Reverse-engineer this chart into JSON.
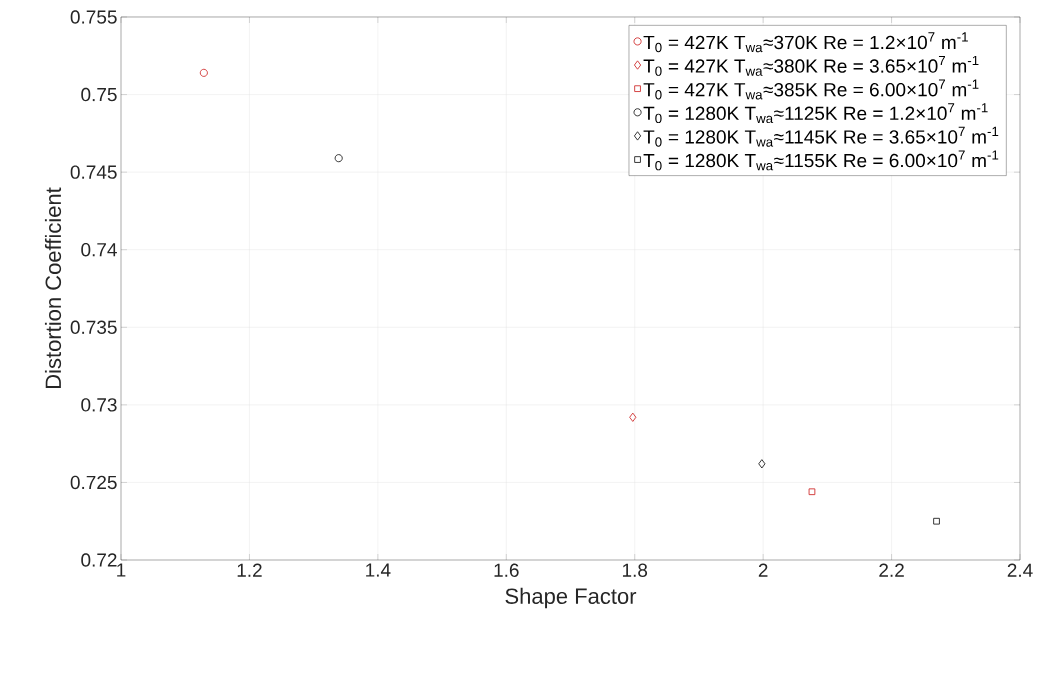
{
  "chart_data": {
    "type": "scatter",
    "xlabel": "Shape Factor",
    "ylabel": "Distortion Coefficient",
    "xlim": [
      1,
      2.4
    ],
    "xticks": [
      1,
      1.2,
      1.4,
      1.6,
      1.8,
      2,
      2.2,
      2.4
    ],
    "ylim": [
      0.72,
      0.755
    ],
    "yticks": [
      0.72,
      0.725,
      0.73,
      0.735,
      0.74,
      0.745,
      0.75,
      0.755
    ],
    "grid": true,
    "legend": "top right",
    "series": [
      {
        "name": "T$_{0}$ = 427K T$_{wa}$≈370K Re = 1.2×10$^{7}$ m$^{-1}$",
        "color": "#d03030",
        "marker": "circle",
        "x": [
          1.129
        ],
        "values": [
          0.7514
        ]
      },
      {
        "name": "T$_{0}$ = 427K T$_{wa}$≈380K Re = 3.65×10$^{7}$ m$^{-1}$",
        "color": "#d03030",
        "marker": "diamond",
        "x": [
          1.797
        ],
        "values": [
          0.7292
        ]
      },
      {
        "name": "T$_{0}$ = 427K T$_{wa}$≈385K Re = 6.00×10$^{7}$ m$^{-1}$",
        "color": "#d03030",
        "marker": "square",
        "x": [
          2.076
        ],
        "values": [
          0.7244
        ]
      },
      {
        "name": "T$_{0}$ = 1280K T$_{wa}$≈1125K Re = 1.2×10$^{7}$ m$^{-1}$",
        "color": "#202020",
        "marker": "circle",
        "x": [
          1.339
        ],
        "values": [
          0.7459
        ]
      },
      {
        "name": "T$_{0}$ = 1280K T$_{wa}$≈1145K Re = 3.65×10$^{7}$ m$^{-1}$",
        "color": "#202020",
        "marker": "diamond",
        "x": [
          1.998
        ],
        "values": [
          0.7262
        ]
      },
      {
        "name": "T$_{0}$ = 1280K T$_{wa}$≈1155K Re = 6.00×10$^{7}$ m$^{-1}$",
        "color": "#202020",
        "marker": "square",
        "x": [
          2.27
        ],
        "values": [
          0.7225
        ]
      }
    ]
  }
}
